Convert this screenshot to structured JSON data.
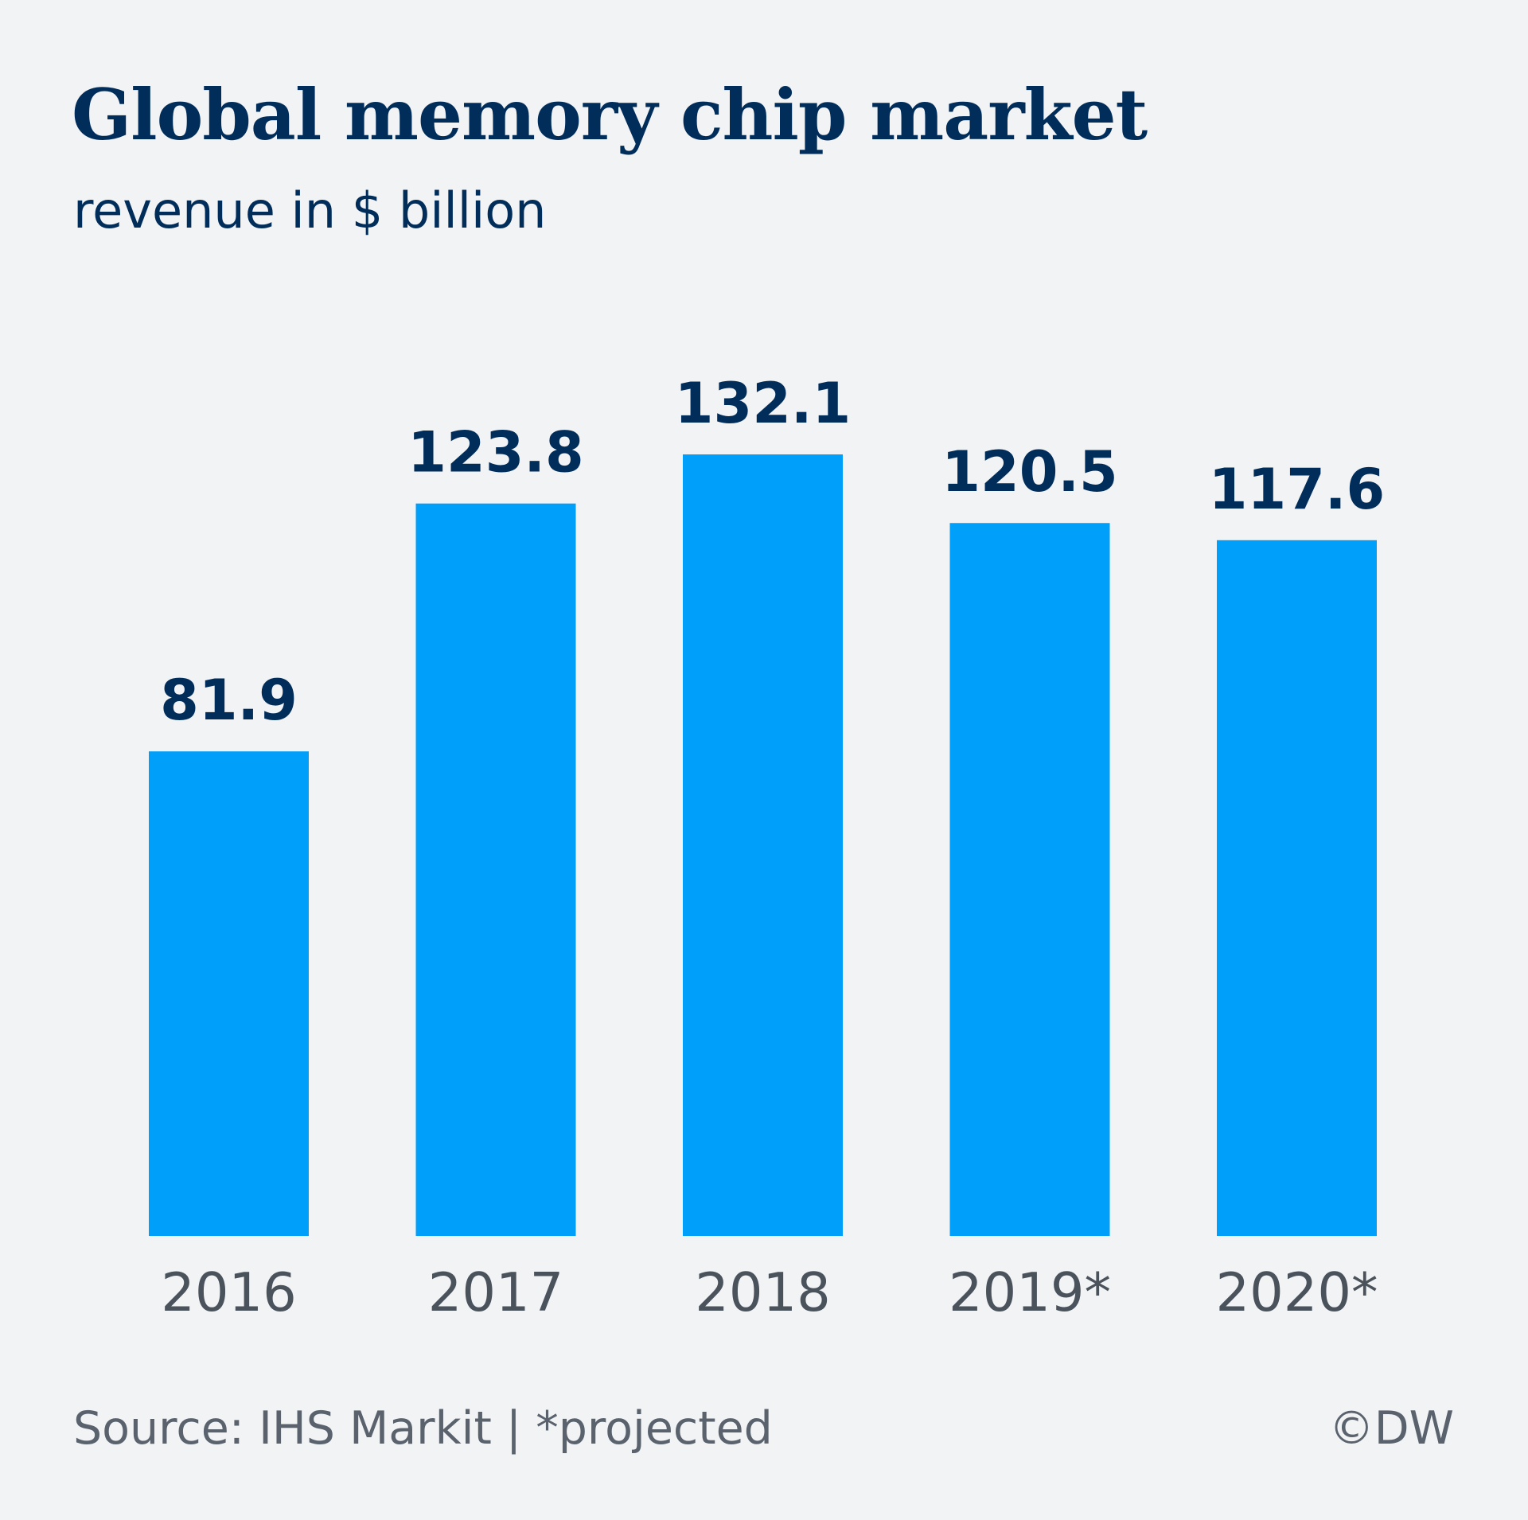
{
  "chart_data": {
    "type": "bar",
    "title": "Global memory chip market",
    "subtitle": "revenue in $ billion",
    "categories": [
      "2016",
      "2017",
      "2018",
      "2019*",
      "2020*"
    ],
    "values": [
      81.9,
      123.8,
      132.1,
      120.5,
      117.6
    ],
    "value_labels": [
      "81.9",
      "123.8",
      "132.1",
      "120.5",
      "117.6"
    ],
    "ylim": [
      0,
      132.1
    ],
    "grid": false,
    "legend": "none",
    "colors": {
      "bar": "#00a0fa",
      "value_label": "#002d5a",
      "category_label": "#4a525c",
      "background": "#f2f3f5"
    }
  },
  "footer": {
    "source": "Source: IHS Markit | *projected",
    "credit": "©DW"
  }
}
